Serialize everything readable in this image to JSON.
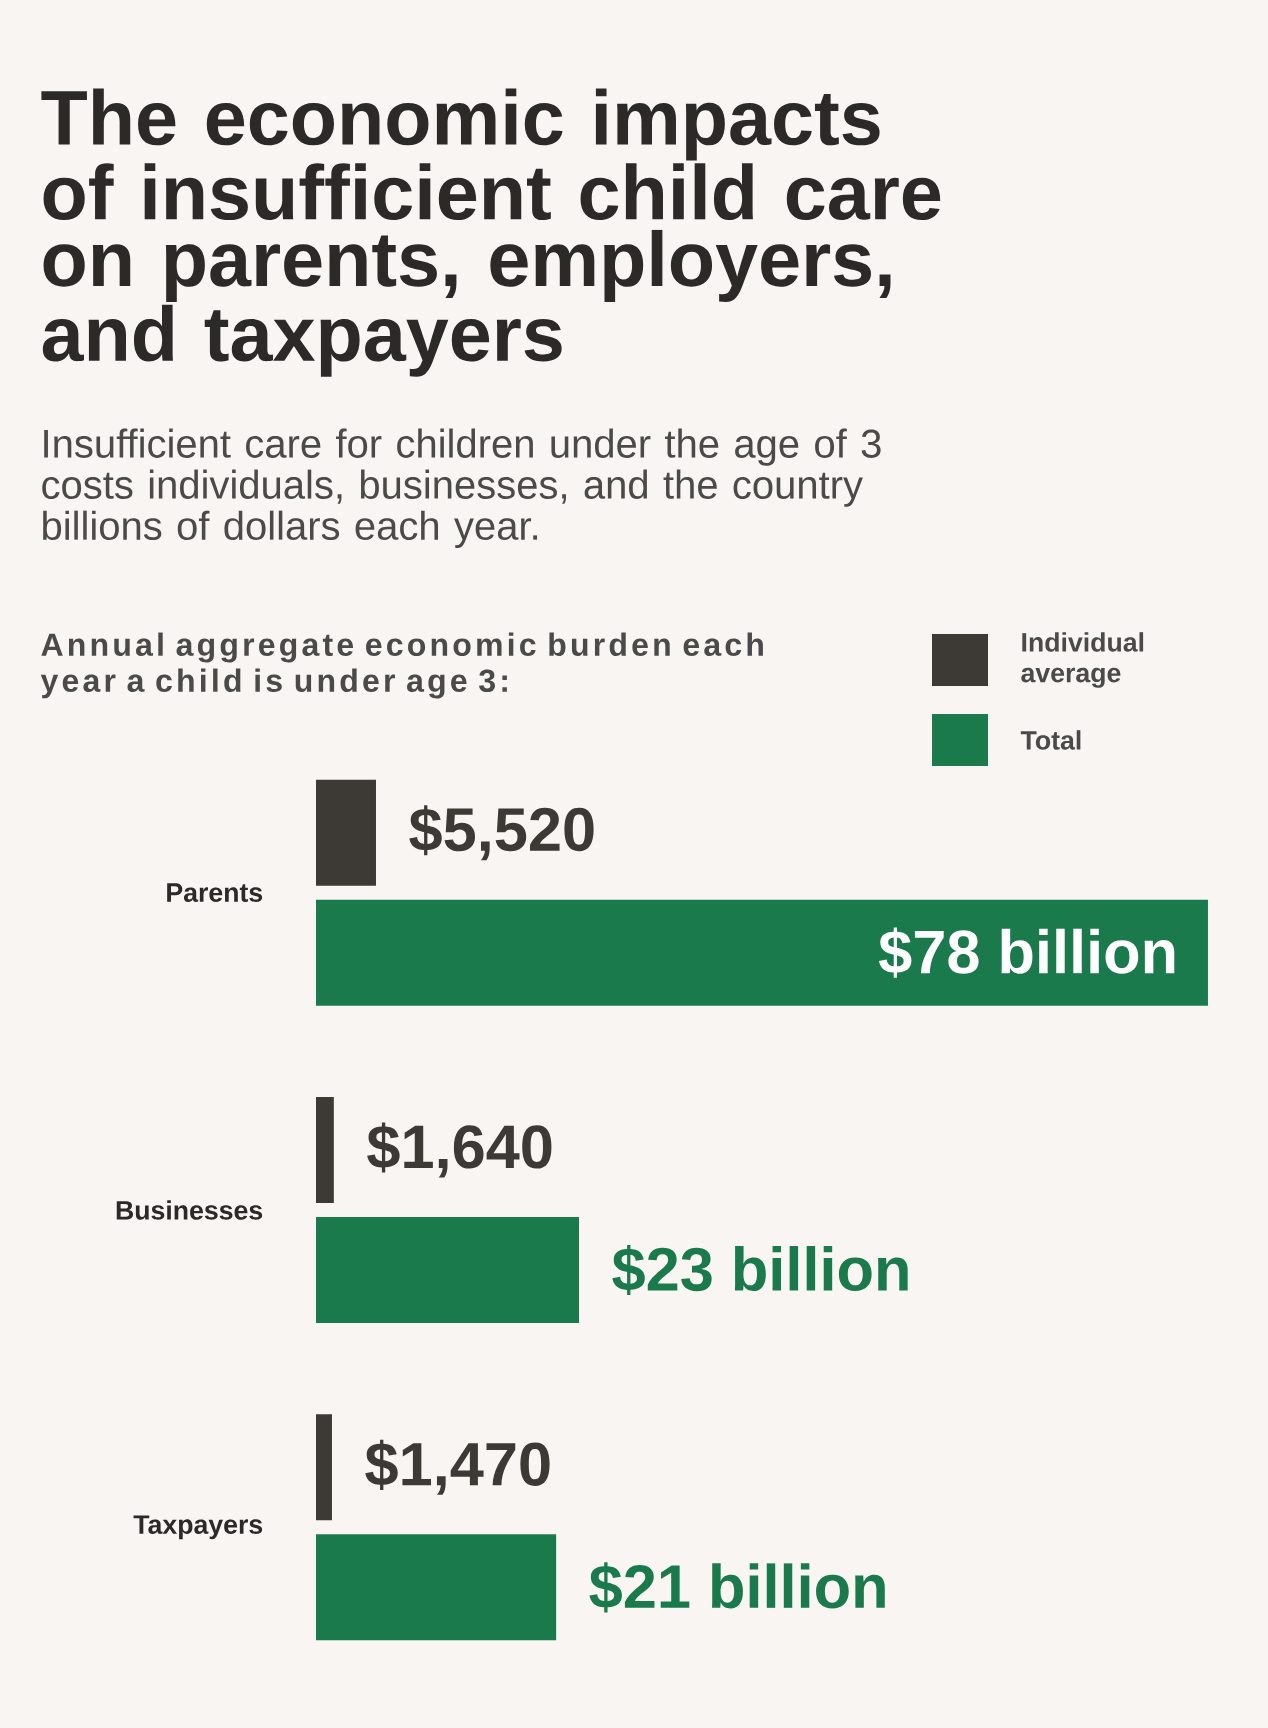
{
  "chart_data": [
    {
      "type": "bar",
      "orientation": "horizontal",
      "title": "The economic impacts of insufficient child care on parents, employers, and taxpayers",
      "subtitle": "Insufficient care for children under the age of 3 costs individuals, businesses, and the country billions of dollars each year.",
      "annotations": [
        "Annual aggregate economic burden each year a child is under age 3:"
      ],
      "categories": [
        null,
        null,
        null
      ],
      "series": [
        {
          "name": "Individual average",
          "color": "#3d3a36",
          "values": [
            5520,
            1640,
            1470
          ],
          "value_labels": [
            "$5,520",
            "$1,640",
            "$1,470"
          ]
        }
      ],
      "xlim": [
        0,
        5520
      ],
      "tick_labels": false,
      "legend": "top right"
    },
    {
      "type": "bar",
      "orientation": "horizontal",
      "categories": [
        "Parents",
        "Businesses",
        "Taxpayers"
      ],
      "series": [
        {
          "name": "Total",
          "color": "#1b7a4c",
          "values": [
            78,
            23,
            21
          ],
          "value_labels": [
            "$78 billion",
            "$23 billion",
            "$21 billion"
          ]
        }
      ],
      "xlim": [
        0,
        78
      ],
      "tick_labels": "y",
      "legend": "top right"
    }
  ]
}
